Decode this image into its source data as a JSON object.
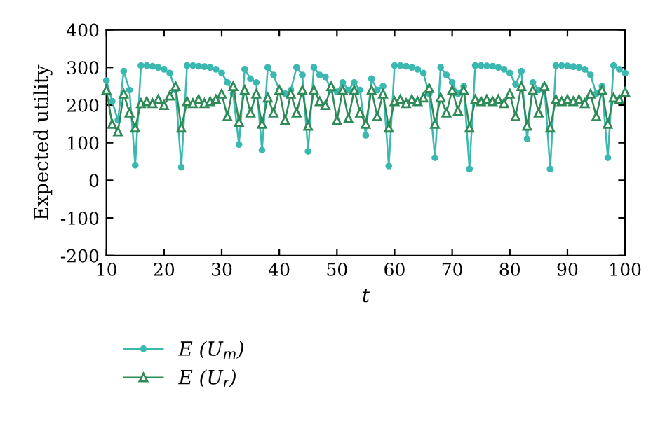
{
  "chart_data": {
    "type": "line",
    "xlabel": "t",
    "ylabel": "Expected utility",
    "xlim": [
      10,
      100
    ],
    "xticks": [
      10,
      20,
      30,
      40,
      50,
      60,
      70,
      80,
      90,
      100
    ],
    "ylim": [
      -200,
      400
    ],
    "yticks": [
      -200,
      -100,
      0,
      100,
      200,
      300,
      400
    ],
    "grid": false,
    "legend": "bottom",
    "line_style": "solid",
    "x": [
      10,
      11,
      12,
      13,
      14,
      15,
      16,
      17,
      18,
      19,
      20,
      21,
      22,
      23,
      24,
      25,
      26,
      27,
      28,
      29,
      30,
      31,
      32,
      33,
      34,
      35,
      36,
      37,
      38,
      39,
      40,
      41,
      42,
      43,
      44,
      45,
      46,
      47,
      48,
      49,
      50,
      51,
      52,
      53,
      54,
      55,
      56,
      57,
      58,
      59,
      60,
      61,
      62,
      63,
      64,
      65,
      66,
      67,
      68,
      69,
      70,
      71,
      72,
      73,
      74,
      75,
      76,
      77,
      78,
      79,
      80,
      81,
      82,
      83,
      84,
      85,
      86,
      87,
      88,
      89,
      90,
      91,
      92,
      93,
      94,
      95,
      96,
      97,
      98,
      99,
      100
    ],
    "series": [
      {
        "name": "E (U$_{m}$)",
        "color": "#3bb8b0",
        "marker": "circle",
        "values": [
          265,
          210,
          160,
          290,
          240,
          40,
          305,
          305,
          303,
          300,
          295,
          285,
          240,
          35,
          305,
          305,
          303,
          302,
          300,
          295,
          285,
          260,
          230,
          95,
          295,
          270,
          260,
          80,
          300,
          280,
          240,
          230,
          240,
          300,
          280,
          77,
          300,
          280,
          275,
          240,
          235,
          260,
          240,
          260,
          240,
          120,
          270,
          240,
          250,
          38,
          305,
          305,
          303,
          300,
          295,
          285,
          230,
          60,
          300,
          280,
          260,
          230,
          250,
          30,
          305,
          305,
          304,
          303,
          300,
          295,
          285,
          255,
          290,
          110,
          260,
          240,
          250,
          30,
          305,
          305,
          304,
          302,
          300,
          295,
          280,
          230,
          250,
          60,
          305,
          295,
          285
        ]
      },
      {
        "name": "E (U$_{r}$)",
        "color": "#2e8b57",
        "marker": "triangle",
        "values": [
          240,
          150,
          130,
          230,
          180,
          140,
          205,
          210,
          205,
          215,
          200,
          225,
          250,
          140,
          210,
          205,
          215,
          205,
          210,
          215,
          230,
          170,
          250,
          155,
          240,
          180,
          230,
          150,
          220,
          180,
          240,
          160,
          230,
          180,
          240,
          145,
          240,
          210,
          200,
          250,
          160,
          240,
          165,
          240,
          180,
          150,
          240,
          170,
          230,
          140,
          210,
          215,
          205,
          215,
          210,
          220,
          245,
          150,
          220,
          180,
          240,
          185,
          240,
          140,
          215,
          210,
          215,
          210,
          215,
          205,
          230,
          170,
          250,
          145,
          240,
          180,
          250,
          140,
          215,
          210,
          215,
          210,
          215,
          205,
          230,
          170,
          240,
          150,
          220,
          215,
          235
        ]
      }
    ]
  }
}
